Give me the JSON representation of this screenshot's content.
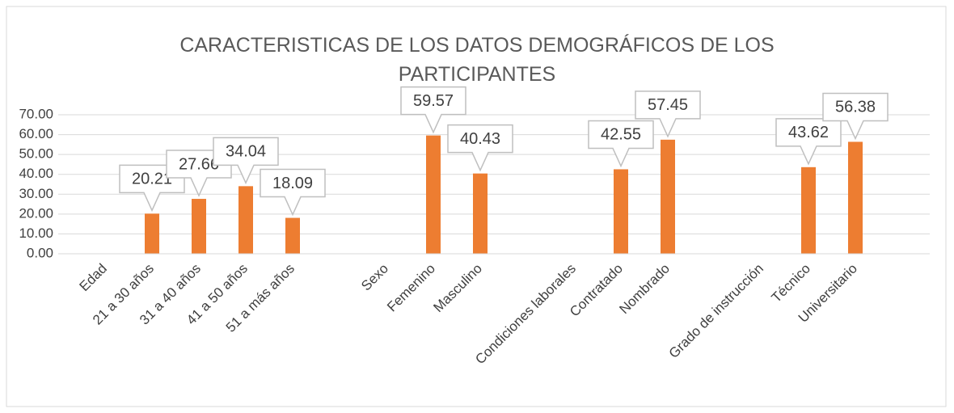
{
  "chart_data": {
    "type": "bar",
    "title": "CARACTERISTICAS DE LOS DATOS DEMOGRÁFICOS DE LOS PARTICIPANTES",
    "categories": [
      "Edad",
      "21 a 30 años",
      "31 a 40 años",
      "41 a 50 años",
      "51 a más años",
      null,
      "Sexo",
      "Femenino",
      "Masculino",
      null,
      "Condiciones laborales",
      "Contratado",
      "Nombrado",
      null,
      "Grado de instrucción",
      "Técnico",
      "Universitario"
    ],
    "values": [
      null,
      20.21,
      27.66,
      34.04,
      18.09,
      null,
      null,
      59.57,
      40.43,
      null,
      null,
      42.55,
      57.45,
      null,
      null,
      43.62,
      56.38
    ],
    "color": "#ed7d31",
    "ylim": [
      0,
      70
    ],
    "yticks": [
      {
        "value": 0,
        "label": "0.00"
      },
      {
        "value": 10,
        "label": "10.00"
      },
      {
        "value": 20,
        "label": "20.00"
      },
      {
        "value": 30,
        "label": "30.00"
      },
      {
        "value": 40,
        "label": "40.00"
      },
      {
        "value": 50,
        "label": "50.00"
      },
      {
        "value": 60,
        "label": "60.00"
      },
      {
        "value": 70,
        "label": "70.00"
      }
    ],
    "grid": true
  }
}
